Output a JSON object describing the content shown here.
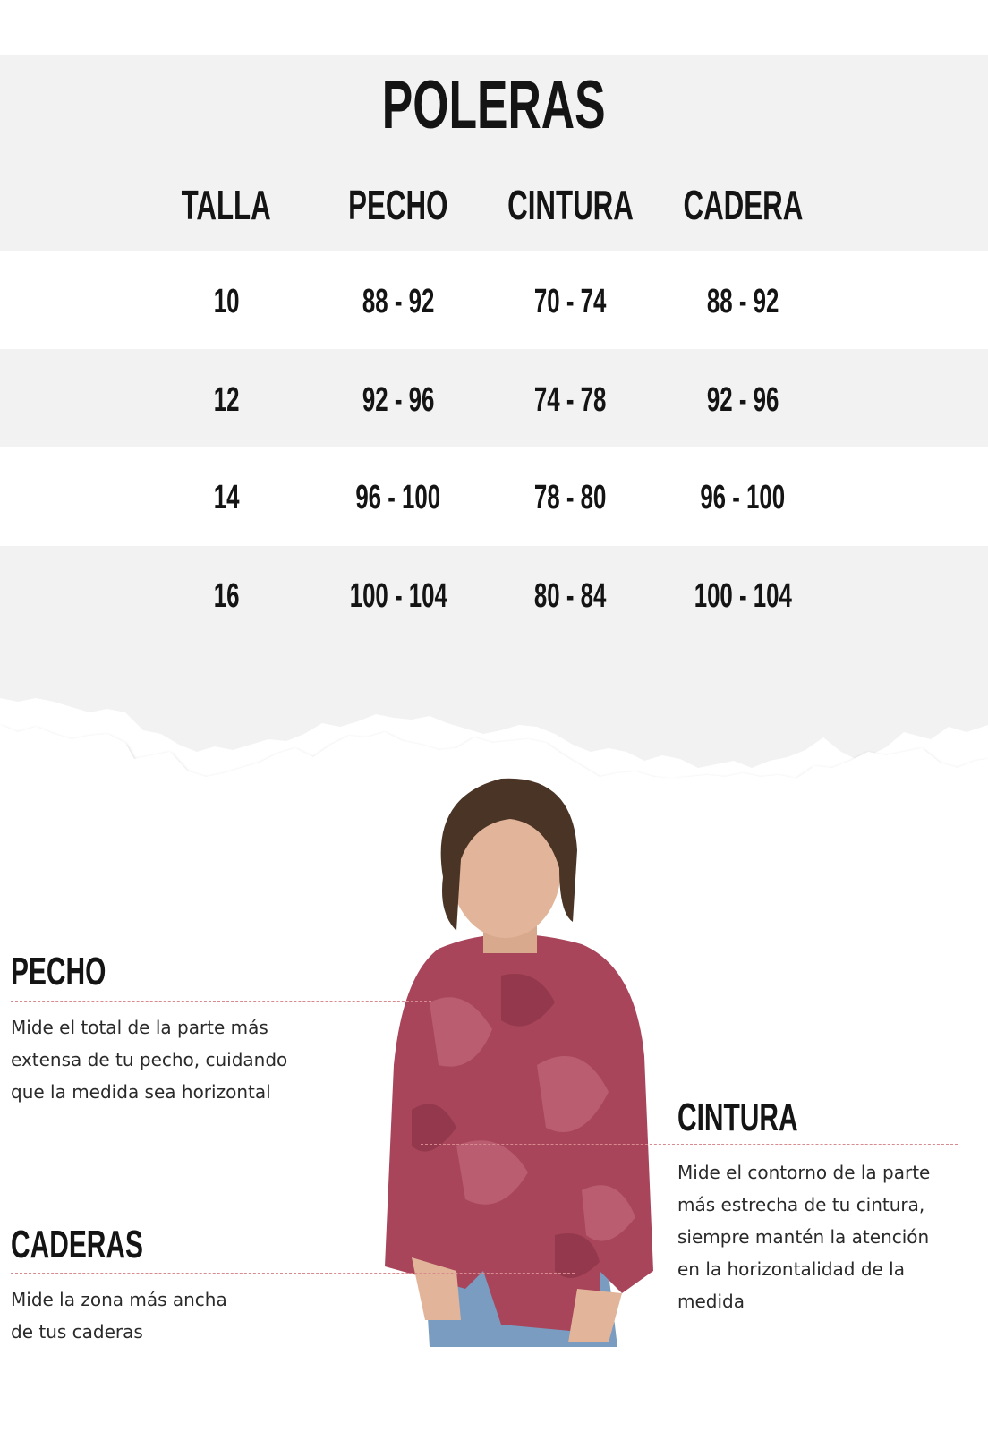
{
  "title": "POLERAS",
  "table": {
    "headers": [
      "TALLA",
      "PECHO",
      "CINTURA",
      "CADERA"
    ],
    "rows": [
      [
        "10",
        "88 - 92",
        "70 - 74",
        "88 - 92"
      ],
      [
        "12",
        "92 - 96",
        "74 - 78",
        "92 - 96"
      ],
      [
        "14",
        "96 - 100",
        "78 - 80",
        "96 - 100"
      ],
      [
        "16",
        "100 - 104",
        "80 - 84",
        "100 - 104"
      ]
    ]
  },
  "guide": {
    "pecho": {
      "label": "PECHO",
      "text": "Mide el total de la parte más\nextensa de tu pecho, cuidando\nque la medida sea horizontal"
    },
    "cintura": {
      "label": "CINTURA",
      "text": "Mide el contorno de la parte\nmás estrecha de tu cintura,\nsiempre mantén la atención\nen  la horizontalidad de la\nmedida"
    },
    "caderas": {
      "label": "CADERAS",
      "text": "Mide la zona más ancha\nde tus caderas"
    }
  },
  "colors": {
    "band": "#f2f2f2",
    "guide_line": "#d88a8f",
    "shirt": "#a8455a"
  }
}
